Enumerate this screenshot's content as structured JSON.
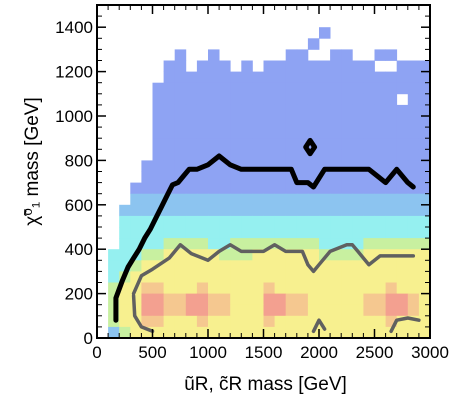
{
  "chart_data": {
    "type": "heatmap",
    "xlabel": "ũR, c̃R mass  [GeV]",
    "ylabel": "χ̃⁰₁ mass [GeV]",
    "xlim": [
      0,
      3000
    ],
    "ylim": [
      0,
      1500
    ],
    "x_ticks": [
      0,
      500,
      1000,
      1500,
      2000,
      2500,
      3000
    ],
    "y_ticks": [
      0,
      200,
      400,
      600,
      800,
      1000,
      1200,
      1400
    ],
    "x_tick_labels": [
      "0",
      "500",
      "1000",
      "1500",
      "2000",
      "2500",
      "3000"
    ],
    "y_tick_labels": [
      "0",
      "200",
      "400",
      "600",
      "800",
      "1000",
      "1200",
      "1400"
    ],
    "grid": false,
    "heatmap": {
      "x_bin_width": 100,
      "y_bin_width": 50,
      "x_start": 0,
      "y_start": 0,
      "colors": {
        "blue": "#8ea3f3",
        "lightblue": "#8cc4f0",
        "cyan": "#95f0f0",
        "green": "#c8f0a0",
        "yellow": "#f7f08f",
        "orange": "#f5c890",
        "salmon": "#f3a090"
      },
      "rows_from_top": [
        "                                         ",
        "                                         ",
        "                    B                    ",
        "                   B                     ",
        "       B  B      BB  BB  BB              ",
        "      BB BBB B BBBBBBBBBB  BBB  B        ",
        "      BBBBBBBBBBBBBBBBBBBBBBBBBBBB       ",
        "     BBBBBBBBBBBBBBBBBBBBBBBBBBBBB       ",
        "     BBBBBBBBBBBBBBBBBBBBBB BBBBBB       ",
        "     BBBBBBBBBBBBBBBBBBBBBBBBBBBBB       ",
        "     BBBBBBBBBBBBBBBBBBBBBBBBBBBBB       ",
        "     BBBBBBBBBBBBBBBBBBBBBBBBBBBBB       ",
        "     BBBBBBBBBBBBBBBBBBBBBBBBBBBBB       ",
        "     BBBBBBBBBBBBBBBBBBBBBBBBBBBBB       ",
        "    BBBBBBBBBBBBBBBBBBBBBBBBBBBBBB       ",
        "    BBBBBBBBBBBBBBBBBBBBBBBBBBBBBB       ",
        "   BBBBBBBBBBBBBBBBBBBBBBBBBBBBBB       ",
        "   LLLLLLLLLLLLLLLLLLLLLLLLLLLLLL       ",
        "  LLLLLLLLLLLLLLLLLLLLLLLLLLLLLLL       ",
        "  CCCCCCCCCCCCCCCCCCCCCCCCCCCCCCC       ",
        "  CCCCCCCCCCCCCCCCCCCCCCCCCCCCCCC       ",
        "  CCCCGGGGCCGGGGGGGGCCCCGGGGGGCCC       ",
        " CCCGGYYYYYGGGYYYYYYGGGGYYYYYYGGC       ",
        " CCGYYYYYYYYYYYYYYYYYYYYYYYYYYYGC       ",
        " CGYYYYYYYYYYYYYYYYYYYYYYYYYYYYYG       ",
        " GYYOOYYYOYYYYYOYYYYYYYYYYOYYYYYG       ",
        " GYYSSOOSSOOYYYSSOOYYYYYOOSSOYYYG       ",
        " GYYSSOOSSOOYYYSSOOYYYYYOOSSOYYYG       ",
        " GYYOOYYYOYYYYYOYYYYYYYYYYOYYYYYG       ",
        " LGYYYYYYYYYYYYYYYYYYYYYYYYYYYYG        "
      ],
      "cell_map": {
        "B": "blue",
        "L": "lightblue",
        "C": "cyan",
        "G": "green",
        "Y": "yellow",
        "O": "orange",
        "S": "salmon"
      }
    },
    "contours": [
      {
        "style": "black-thick",
        "color": "#000000",
        "points": [
          [
            170,
            80
          ],
          [
            170,
            180
          ],
          [
            230,
            260
          ],
          [
            280,
            320
          ],
          [
            330,
            360
          ],
          [
            380,
            400
          ],
          [
            430,
            450
          ],
          [
            480,
            490
          ],
          [
            530,
            540
          ],
          [
            580,
            590
          ],
          [
            630,
            640
          ],
          [
            680,
            690
          ],
          [
            730,
            700
          ],
          [
            780,
            730
          ],
          [
            830,
            760
          ],
          [
            900,
            760
          ],
          [
            1000,
            780
          ],
          [
            1100,
            820
          ],
          [
            1200,
            780
          ],
          [
            1300,
            760
          ],
          [
            1500,
            760
          ],
          [
            1650,
            760
          ],
          [
            1750,
            760
          ],
          [
            1800,
            700
          ],
          [
            1900,
            700
          ],
          [
            1950,
            680
          ],
          [
            2050,
            760
          ],
          [
            2200,
            760
          ],
          [
            2300,
            760
          ],
          [
            2450,
            760
          ],
          [
            2600,
            700
          ],
          [
            2700,
            760
          ],
          [
            2800,
            700
          ],
          [
            2850,
            680
          ]
        ]
      },
      {
        "style": "gray-upper",
        "color": "#606060",
        "points": [
          [
            330,
            200
          ],
          [
            400,
            280
          ],
          [
            500,
            310
          ],
          [
            650,
            360
          ],
          [
            750,
            420
          ],
          [
            850,
            380
          ],
          [
            1000,
            350
          ],
          [
            1100,
            390
          ],
          [
            1200,
            420
          ],
          [
            1300,
            390
          ],
          [
            1500,
            390
          ],
          [
            1600,
            420
          ],
          [
            1700,
            390
          ],
          [
            1850,
            390
          ],
          [
            1900,
            330
          ],
          [
            1950,
            300
          ],
          [
            2000,
            330
          ],
          [
            2100,
            390
          ],
          [
            2250,
            420
          ],
          [
            2300,
            420
          ],
          [
            2350,
            390
          ],
          [
            2450,
            330
          ],
          [
            2550,
            370
          ],
          [
            2650,
            370
          ],
          [
            2850,
            370
          ]
        ]
      },
      {
        "style": "gray-lower-left",
        "color": "#606060",
        "points": [
          [
            330,
            190
          ],
          [
            340,
            100
          ],
          [
            400,
            50
          ],
          [
            500,
            30
          ]
        ]
      },
      {
        "style": "gray-lower-mid",
        "color": "#606060",
        "points": [
          [
            1950,
            30
          ],
          [
            2000,
            80
          ],
          [
            2050,
            40
          ]
        ]
      },
      {
        "style": "gray-lower-right",
        "color": "#606060",
        "points": [
          [
            2650,
            30
          ],
          [
            2700,
            80
          ],
          [
            2800,
            90
          ],
          [
            2900,
            80
          ]
        ]
      },
      {
        "style": "diamond",
        "color": "#000000",
        "points": [
          [
            1880,
            860
          ],
          [
            1920,
            890
          ],
          [
            1960,
            860
          ],
          [
            1920,
            830
          ],
          [
            1880,
            860
          ]
        ]
      }
    ]
  }
}
